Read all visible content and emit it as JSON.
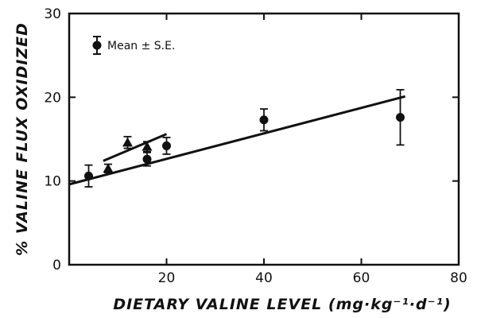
{
  "chart_data": {
    "type": "scatter",
    "title": "",
    "xlabel": "DIETARY VALINE LEVEL (mg·kg⁻¹·d⁻¹)",
    "ylabel": "% VALINE FLUX OXIDIZED",
    "xlim": [
      0,
      80
    ],
    "ylim": [
      0,
      30
    ],
    "xticks": [
      0,
      20,
      40,
      60,
      80
    ],
    "yticks": [
      0,
      10,
      20,
      30
    ],
    "x_tick_labels": [
      "20",
      "40",
      "60",
      "80"
    ],
    "y_tick_labels": [
      "0",
      "10",
      "20",
      "30"
    ],
    "grid": false,
    "legend": {
      "position": "top-left",
      "label": "Mean ± S.E."
    },
    "series": [
      {
        "name": "circles",
        "marker": "circle",
        "points": [
          {
            "x": 4,
            "y": 10.6,
            "err": 1.3
          },
          {
            "x": 16,
            "y": 12.6,
            "err": 0.8
          },
          {
            "x": 20,
            "y": 14.2,
            "err": 1.0
          },
          {
            "x": 40,
            "y": 17.3,
            "err": 1.3
          },
          {
            "x": 68,
            "y": 17.6,
            "err": 3.3
          }
        ]
      },
      {
        "name": "triangles",
        "marker": "triangle",
        "points": [
          {
            "x": 8,
            "y": 11.5,
            "err": 0.5
          },
          {
            "x": 12,
            "y": 14.6,
            "err": 0.7
          },
          {
            "x": 16,
            "y": 14.1,
            "err": 0.6
          }
        ]
      }
    ],
    "lines": [
      {
        "name": "overall regression",
        "x": [
          0,
          69
        ],
        "y": [
          9.6,
          20.1
        ]
      },
      {
        "name": "low-intake regression",
        "x": [
          7,
          20
        ],
        "y": [
          12.4,
          15.6
        ]
      }
    ]
  }
}
